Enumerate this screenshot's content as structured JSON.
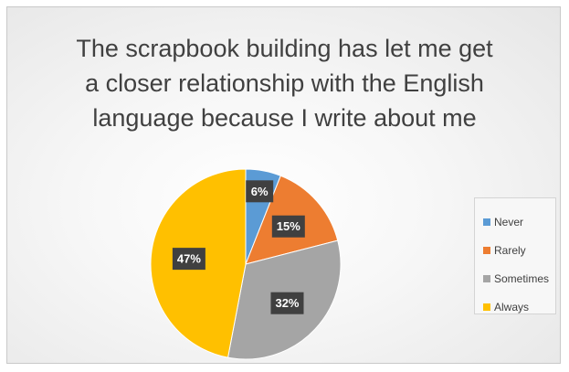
{
  "chart_data": {
    "type": "pie",
    "title_lines": [
      "The scrapbook building has let me get",
      "a closer relationship with the English",
      "language because I write about me"
    ],
    "categories": [
      "Never",
      "Rarely",
      "Sometimes",
      "Always"
    ],
    "values": [
      6,
      15,
      32,
      47
    ],
    "data_labels": [
      "6%",
      "15%",
      "32%",
      "47%"
    ],
    "colors": [
      "#5b9bd5",
      "#ed7d31",
      "#a5a5a5",
      "#ffc000"
    ],
    "legend_position": "right"
  }
}
